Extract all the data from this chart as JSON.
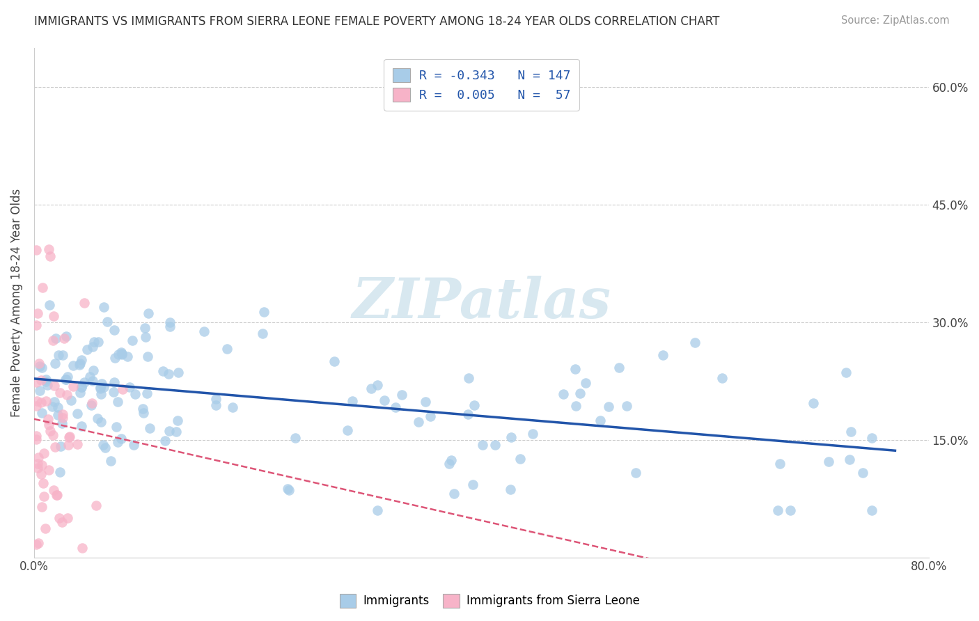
{
  "title": "IMMIGRANTS VS IMMIGRANTS FROM SIERRA LEONE FEMALE POVERTY AMONG 18-24 YEAR OLDS CORRELATION CHART",
  "source": "Source: ZipAtlas.com",
  "ylabel": "Female Poverty Among 18-24 Year Olds",
  "legend_labels": [
    "Immigrants",
    "Immigrants from Sierra Leone"
  ],
  "R_immigrants": -0.343,
  "N_immigrants": 147,
  "R_sierra": 0.005,
  "N_sierra": 57,
  "xlim": [
    0.0,
    0.8
  ],
  "ylim": [
    0.0,
    0.65
  ],
  "color_immigrants": "#a8cce8",
  "color_sierra": "#f7b3c8",
  "line_color_immigrants": "#2255aa",
  "line_color_sierra": "#dd5577",
  "background_color": "#ffffff",
  "watermark_text": "ZIPatlas",
  "watermark_color": "#d8e8f0",
  "seed": 42
}
